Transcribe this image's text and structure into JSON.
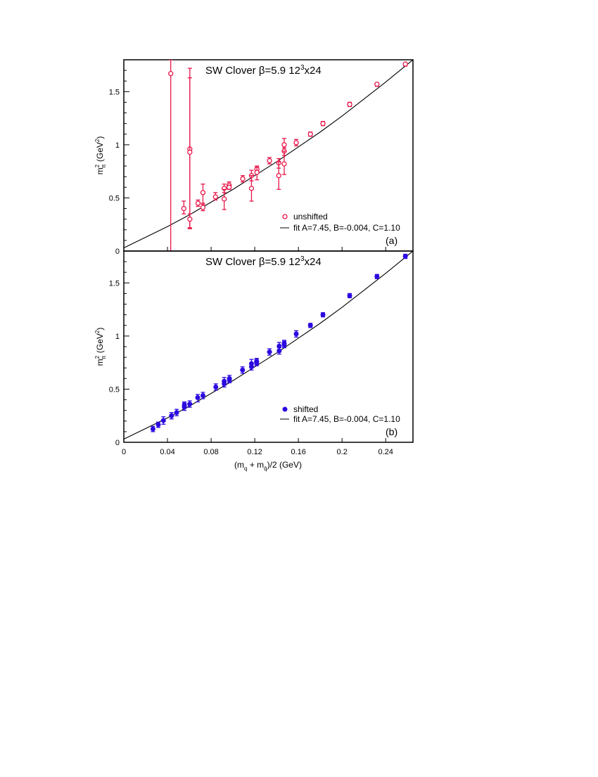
{
  "chart_data": [
    {
      "type": "scatter",
      "panel_label": "(a)",
      "title": "SW Clover β=5.9 12³x24",
      "title_main": "SW Clover β=5.9 12",
      "title_sup": "3",
      "title_tail": "x24",
      "ylabel": "m",
      "ylabel_sub": "π",
      "ylabel_sup": "2",
      "ylabel_unit": " (GeV",
      "ylabel_unit_sup": "2",
      "ylabel_close": ")",
      "xlim": [
        0,
        0.265
      ],
      "ylim": [
        0,
        1.8
      ],
      "yticks": [
        "0",
        "0.5",
        "1",
        "1.5"
      ],
      "ytick_values": [
        0,
        0.5,
        1,
        1.5
      ],
      "legend": {
        "marker_label": "unshifted",
        "fit_label": "fit A=7.45, B=-0.004, C=1.10",
        "placement": "bottom-right"
      },
      "marker": "open-circle",
      "color": "#e8174a",
      "series": [
        {
          "x": 0.043,
          "y": 1.67,
          "lo": 0.0,
          "hi": 1.8
        },
        {
          "x": 0.055,
          "y": 0.4,
          "lo": 0.35,
          "hi": 0.47
        },
        {
          "x": 0.0605,
          "y": 0.96,
          "lo": 0.21,
          "hi": 1.72
        },
        {
          "x": 0.0605,
          "y": 0.93,
          "lo": 0.22,
          "hi": 1.63
        },
        {
          "x": 0.0605,
          "y": 0.3,
          "lo": 0.21,
          "hi": 0.35
        },
        {
          "x": 0.068,
          "y": 0.45,
          "lo": 0.42,
          "hi": 0.48
        },
        {
          "x": 0.0725,
          "y": 0.55,
          "lo": 0.45,
          "hi": 0.63
        },
        {
          "x": 0.0725,
          "y": 0.41,
          "lo": 0.38,
          "hi": 0.44
        },
        {
          "x": 0.084,
          "y": 0.51,
          "lo": 0.48,
          "hi": 0.55
        },
        {
          "x": 0.092,
          "y": 0.59,
          "lo": 0.55,
          "hi": 0.63
        },
        {
          "x": 0.092,
          "y": 0.49,
          "lo": 0.39,
          "hi": 0.58
        },
        {
          "x": 0.0965,
          "y": 0.62,
          "lo": 0.59,
          "hi": 0.65
        },
        {
          "x": 0.0965,
          "y": 0.6,
          "lo": 0.58,
          "hi": 0.62
        },
        {
          "x": 0.109,
          "y": 0.68,
          "lo": 0.65,
          "hi": 0.71
        },
        {
          "x": 0.117,
          "y": 0.71,
          "lo": 0.66,
          "hi": 0.76
        },
        {
          "x": 0.117,
          "y": 0.59,
          "lo": 0.47,
          "hi": 0.71
        },
        {
          "x": 0.122,
          "y": 0.77,
          "lo": 0.74,
          "hi": 0.8
        },
        {
          "x": 0.122,
          "y": 0.74,
          "lo": 0.67,
          "hi": 0.79
        },
        {
          "x": 0.1335,
          "y": 0.85,
          "lo": 0.82,
          "hi": 0.88
        },
        {
          "x": 0.142,
          "y": 0.83,
          "lo": 0.78,
          "hi": 0.87
        },
        {
          "x": 0.142,
          "y": 0.71,
          "lo": 0.58,
          "hi": 0.84
        },
        {
          "x": 0.147,
          "y": 1.0,
          "lo": 0.94,
          "hi": 1.06
        },
        {
          "x": 0.147,
          "y": 0.94,
          "lo": 0.9,
          "hi": 0.97
        },
        {
          "x": 0.147,
          "y": 0.82,
          "lo": 0.72,
          "hi": 0.94
        },
        {
          "x": 0.158,
          "y": 1.02,
          "lo": 0.99,
          "hi": 1.05
        },
        {
          "x": 0.171,
          "y": 1.1,
          "lo": 1.08,
          "hi": 1.12
        },
        {
          "x": 0.1825,
          "y": 1.2,
          "lo": 1.18,
          "hi": 1.22
        },
        {
          "x": 0.207,
          "y": 1.38,
          "lo": 1.36,
          "hi": 1.4
        },
        {
          "x": 0.232,
          "y": 1.57,
          "lo": 1.55,
          "hi": 1.58
        },
        {
          "x": 0.258,
          "y": 1.76,
          "lo": 1.74,
          "hi": 1.77
        }
      ],
      "fit_curve": [
        [
          0,
          0.03
        ],
        [
          0.02,
          0.13
        ],
        [
          0.04,
          0.23
        ],
        [
          0.06,
          0.34
        ],
        [
          0.08,
          0.46
        ],
        [
          0.1,
          0.58
        ],
        [
          0.12,
          0.71
        ],
        [
          0.14,
          0.84
        ],
        [
          0.16,
          0.98
        ],
        [
          0.18,
          1.12
        ],
        [
          0.2,
          1.27
        ],
        [
          0.22,
          1.43
        ],
        [
          0.24,
          1.59
        ],
        [
          0.265,
          1.8
        ]
      ]
    },
    {
      "type": "scatter",
      "panel_label": "(b)",
      "title": "SW Clover β=5.9 12³x24",
      "title_main": "SW Clover β=5.9 12",
      "title_sup": "3",
      "title_tail": "x24",
      "ylabel": "m",
      "ylabel_sub": "π",
      "ylabel_sup": "2",
      "ylabel_unit": " (GeV",
      "ylabel_unit_sup": "2",
      "ylabel_close": ")",
      "xlabel_pre": "(m",
      "xlabel_sub1": "q",
      "xlabel_mid": " + m",
      "xlabel_sub2": "q̄",
      "xlabel_post": ")/2 (GeV)",
      "xlim": [
        0,
        0.265
      ],
      "ylim": [
        0,
        1.8
      ],
      "xticks": [
        "0",
        "0.04",
        "0.08",
        "0.12",
        "0.16",
        "0.2",
        "0.24"
      ],
      "xtick_values": [
        0,
        0.04,
        0.08,
        0.12,
        0.16,
        0.2,
        0.24
      ],
      "yticks": [
        "0",
        "0.5",
        "1",
        "1.5"
      ],
      "ytick_values": [
        0,
        0.5,
        1,
        1.5
      ],
      "legend": {
        "marker_label": "shifted",
        "fit_label": "fit A=7.45, B=-0.004, C=1.10",
        "placement": "bottom-right"
      },
      "marker": "filled-circle",
      "color": "#2a0ae0",
      "series": [
        {
          "x": 0.0267,
          "y": 0.126,
          "lo": 0.1,
          "hi": 0.15
        },
        {
          "x": 0.0316,
          "y": 0.166,
          "lo": 0.14,
          "hi": 0.19
        },
        {
          "x": 0.0363,
          "y": 0.205,
          "lo": 0.17,
          "hi": 0.24
        },
        {
          "x": 0.0437,
          "y": 0.25,
          "lo": 0.22,
          "hi": 0.28
        },
        {
          "x": 0.0484,
          "y": 0.28,
          "lo": 0.25,
          "hi": 0.31
        },
        {
          "x": 0.0555,
          "y": 0.33,
          "lo": 0.3,
          "hi": 0.37
        },
        {
          "x": 0.0555,
          "y": 0.35,
          "lo": 0.32,
          "hi": 0.38
        },
        {
          "x": 0.0604,
          "y": 0.36,
          "lo": 0.33,
          "hi": 0.39
        },
        {
          "x": 0.0677,
          "y": 0.42,
          "lo": 0.38,
          "hi": 0.45
        },
        {
          "x": 0.0725,
          "y": 0.44,
          "lo": 0.41,
          "hi": 0.47
        },
        {
          "x": 0.0843,
          "y": 0.52,
          "lo": 0.49,
          "hi": 0.55
        },
        {
          "x": 0.092,
          "y": 0.574,
          "lo": 0.54,
          "hi": 0.61
        },
        {
          "x": 0.092,
          "y": 0.55,
          "lo": 0.52,
          "hi": 0.58
        },
        {
          "x": 0.0968,
          "y": 0.6,
          "lo": 0.57,
          "hi": 0.63
        },
        {
          "x": 0.0968,
          "y": 0.59,
          "lo": 0.56,
          "hi": 0.61
        },
        {
          "x": 0.1088,
          "y": 0.68,
          "lo": 0.65,
          "hi": 0.71
        },
        {
          "x": 0.117,
          "y": 0.74,
          "lo": 0.71,
          "hi": 0.78
        },
        {
          "x": 0.117,
          "y": 0.71,
          "lo": 0.68,
          "hi": 0.74
        },
        {
          "x": 0.1217,
          "y": 0.76,
          "lo": 0.73,
          "hi": 0.79
        },
        {
          "x": 0.1217,
          "y": 0.75,
          "lo": 0.72,
          "hi": 0.78
        },
        {
          "x": 0.1335,
          "y": 0.85,
          "lo": 0.82,
          "hi": 0.88
        },
        {
          "x": 0.1424,
          "y": 0.905,
          "lo": 0.87,
          "hi": 0.94
        },
        {
          "x": 0.1424,
          "y": 0.86,
          "lo": 0.83,
          "hi": 0.89
        },
        {
          "x": 0.147,
          "y": 0.93,
          "lo": 0.9,
          "hi": 0.96
        },
        {
          "x": 0.147,
          "y": 0.92,
          "lo": 0.89,
          "hi": 0.95
        },
        {
          "x": 0.158,
          "y": 1.02,
          "lo": 0.99,
          "hi": 1.05
        },
        {
          "x": 0.171,
          "y": 1.1,
          "lo": 1.08,
          "hi": 1.12
        },
        {
          "x": 0.1825,
          "y": 1.2,
          "lo": 1.18,
          "hi": 1.22
        },
        {
          "x": 0.207,
          "y": 1.38,
          "lo": 1.36,
          "hi": 1.4
        },
        {
          "x": 0.232,
          "y": 1.56,
          "lo": 1.54,
          "hi": 1.58
        },
        {
          "x": 0.258,
          "y": 1.75,
          "lo": 1.73,
          "hi": 1.77
        }
      ],
      "fit_curve": [
        [
          0,
          0.03
        ],
        [
          0.02,
          0.13
        ],
        [
          0.04,
          0.23
        ],
        [
          0.06,
          0.34
        ],
        [
          0.08,
          0.46
        ],
        [
          0.1,
          0.58
        ],
        [
          0.12,
          0.71
        ],
        [
          0.14,
          0.84
        ],
        [
          0.16,
          0.98
        ],
        [
          0.18,
          1.12
        ],
        [
          0.2,
          1.27
        ],
        [
          0.22,
          1.43
        ],
        [
          0.24,
          1.59
        ],
        [
          0.265,
          1.8
        ]
      ]
    }
  ]
}
